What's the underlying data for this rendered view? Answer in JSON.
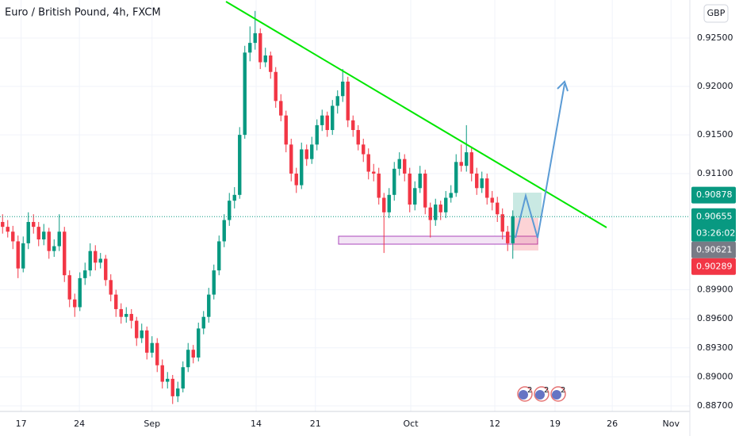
{
  "chart_data": {
    "type": "candlestick",
    "title": "Euro / British Pound, 4h, FXCM",
    "currency": "GBP",
    "up_color": "#089981",
    "down_color": "#f23645",
    "ylim": [
      0.88635,
      0.92893
    ],
    "yticks": [
      {
        "value": 0.925,
        "label": "0.92500"
      },
      {
        "value": 0.92,
        "label": "0.92000"
      },
      {
        "value": 0.915,
        "label": "0.91500"
      },
      {
        "value": 0.911,
        "label": "0.91100"
      },
      {
        "value": 0.899,
        "label": "0.89900"
      },
      {
        "value": 0.896,
        "label": "0.89600"
      },
      {
        "value": 0.893,
        "label": "0.89300"
      },
      {
        "value": 0.89,
        "label": "0.89000"
      },
      {
        "value": 0.887,
        "label": "0.88700"
      }
    ],
    "xlim": [
      -0.5,
      133.35
    ],
    "xticks": [
      {
        "value": 3.6,
        "label": "17"
      },
      {
        "value": 14.9,
        "label": "24"
      },
      {
        "value": 29,
        "label": "Sep"
      },
      {
        "value": 49.2,
        "label": "14"
      },
      {
        "value": 60.7,
        "label": "21"
      },
      {
        "value": 79.2,
        "label": "Oct"
      },
      {
        "value": 95.5,
        "label": "12"
      },
      {
        "value": 107.2,
        "label": "19"
      },
      {
        "value": 118.3,
        "label": "26"
      },
      {
        "value": 129.7,
        "label": "Nov"
      }
    ],
    "grid": true,
    "ohlc": [
      [
        0.906,
        0.9068,
        0.9048,
        0.9055
      ],
      [
        0.9055,
        0.9062,
        0.9044,
        0.905
      ],
      [
        0.905,
        0.9056,
        0.9032,
        0.904
      ],
      [
        0.904,
        0.9046,
        0.9002,
        0.9012
      ],
      [
        0.9012,
        0.9045,
        0.9008,
        0.9038
      ],
      [
        0.9038,
        0.907,
        0.9032,
        0.906
      ],
      [
        0.906,
        0.9068,
        0.9048,
        0.9055
      ],
      [
        0.9055,
        0.906,
        0.9035,
        0.9042
      ],
      [
        0.9042,
        0.9058,
        0.9036,
        0.905
      ],
      [
        0.905,
        0.9054,
        0.9022,
        0.903
      ],
      [
        0.903,
        0.9042,
        0.9024,
        0.9035
      ],
      [
        0.9035,
        0.9068,
        0.903,
        0.905
      ],
      [
        0.905,
        0.9055,
        0.8998,
        0.9005
      ],
      [
        0.9005,
        0.901,
        0.8972,
        0.898
      ],
      [
        0.898,
        0.8986,
        0.8962,
        0.8972
      ],
      [
        0.8972,
        0.9008,
        0.8968,
        0.9002
      ],
      [
        0.9002,
        0.9018,
        0.8995,
        0.901
      ],
      [
        0.901,
        0.9038,
        0.9004,
        0.903
      ],
      [
        0.903,
        0.9036,
        0.901,
        0.9018
      ],
      [
        0.9018,
        0.9028,
        0.9012,
        0.9022
      ],
      [
        0.9022,
        0.9026,
        0.8994,
        0.9
      ],
      [
        0.9,
        0.9006,
        0.8978,
        0.8985
      ],
      [
        0.8985,
        0.899,
        0.8962,
        0.897
      ],
      [
        0.897,
        0.8976,
        0.8955,
        0.8962
      ],
      [
        0.8962,
        0.8972,
        0.8956,
        0.8965
      ],
      [
        0.8965,
        0.897,
        0.895,
        0.8958
      ],
      [
        0.8958,
        0.8962,
        0.8932,
        0.894
      ],
      [
        0.894,
        0.8955,
        0.8935,
        0.8948
      ],
      [
        0.8948,
        0.8952,
        0.8918,
        0.8925
      ],
      [
        0.8925,
        0.8942,
        0.892,
        0.8935
      ],
      [
        0.8935,
        0.894,
        0.8905,
        0.8912
      ],
      [
        0.8912,
        0.8918,
        0.8888,
        0.8895
      ],
      [
        0.8895,
        0.8905,
        0.8888,
        0.8898
      ],
      [
        0.8898,
        0.8902,
        0.8872,
        0.888
      ],
      [
        0.888,
        0.8895,
        0.8874,
        0.8888
      ],
      [
        0.8888,
        0.8916,
        0.8884,
        0.891
      ],
      [
        0.891,
        0.8935,
        0.8905,
        0.8928
      ],
      [
        0.8928,
        0.8933,
        0.8914,
        0.892
      ],
      [
        0.892,
        0.8956,
        0.8916,
        0.895
      ],
      [
        0.895,
        0.8968,
        0.8944,
        0.8962
      ],
      [
        0.8962,
        0.8992,
        0.8956,
        0.8985
      ],
      [
        0.8985,
        0.9016,
        0.898,
        0.901
      ],
      [
        0.901,
        0.9046,
        0.9005,
        0.904
      ],
      [
        0.904,
        0.9068,
        0.9034,
        0.9062
      ],
      [
        0.9062,
        0.909,
        0.9056,
        0.9082
      ],
      [
        0.9082,
        0.9096,
        0.9074,
        0.9088
      ],
      [
        0.9088,
        0.9158,
        0.9084,
        0.915
      ],
      [
        0.915,
        0.9242,
        0.9146,
        0.9235
      ],
      [
        0.9235,
        0.9262,
        0.9226,
        0.9245
      ],
      [
        0.9245,
        0.9278,
        0.9238,
        0.9255
      ],
      [
        0.9255,
        0.926,
        0.9218,
        0.9225
      ],
      [
        0.9225,
        0.924,
        0.922,
        0.9232
      ],
      [
        0.9232,
        0.9236,
        0.9208,
        0.9215
      ],
      [
        0.9215,
        0.922,
        0.9178,
        0.9185
      ],
      [
        0.9185,
        0.9192,
        0.9164,
        0.917
      ],
      [
        0.917,
        0.9175,
        0.9132,
        0.914
      ],
      [
        0.914,
        0.9146,
        0.9102,
        0.911
      ],
      [
        0.911,
        0.9116,
        0.909,
        0.9098
      ],
      [
        0.9098,
        0.9142,
        0.9094,
        0.9135
      ],
      [
        0.9135,
        0.914,
        0.9118,
        0.9125
      ],
      [
        0.9125,
        0.9148,
        0.912,
        0.914
      ],
      [
        0.914,
        0.9166,
        0.9134,
        0.916
      ],
      [
        0.916,
        0.9176,
        0.9154,
        0.917
      ],
      [
        0.917,
        0.9174,
        0.9148,
        0.9155
      ],
      [
        0.9155,
        0.9186,
        0.915,
        0.918
      ],
      [
        0.918,
        0.9196,
        0.9172,
        0.919
      ],
      [
        0.919,
        0.9218,
        0.9184,
        0.9205
      ],
      [
        0.9205,
        0.921,
        0.9158,
        0.9165
      ],
      [
        0.9165,
        0.917,
        0.9148,
        0.9155
      ],
      [
        0.9155,
        0.916,
        0.9134,
        0.914
      ],
      [
        0.914,
        0.9146,
        0.9122,
        0.913
      ],
      [
        0.913,
        0.9136,
        0.9104,
        0.9112
      ],
      [
        0.9112,
        0.912,
        0.9102,
        0.911
      ],
      [
        0.911,
        0.9116,
        0.9078,
        0.9085
      ],
      [
        0.9085,
        0.909,
        0.9028,
        0.907
      ],
      [
        0.907,
        0.9095,
        0.9064,
        0.9088
      ],
      [
        0.9088,
        0.9122,
        0.9082,
        0.9115
      ],
      [
        0.9115,
        0.9132,
        0.9108,
        0.9125
      ],
      [
        0.9125,
        0.913,
        0.9102,
        0.911
      ],
      [
        0.911,
        0.9116,
        0.907,
        0.9078
      ],
      [
        0.9078,
        0.9102,
        0.9072,
        0.9095
      ],
      [
        0.9095,
        0.9118,
        0.909,
        0.911
      ],
      [
        0.911,
        0.9114,
        0.9068,
        0.9075
      ],
      [
        0.9075,
        0.908,
        0.9044,
        0.9062
      ],
      [
        0.9062,
        0.9084,
        0.9056,
        0.9078
      ],
      [
        0.9078,
        0.9082,
        0.9062,
        0.907
      ],
      [
        0.907,
        0.9092,
        0.9064,
        0.9085
      ],
      [
        0.9085,
        0.9098,
        0.908,
        0.909
      ],
      [
        0.909,
        0.913,
        0.9086,
        0.9122
      ],
      [
        0.9122,
        0.914,
        0.9112,
        0.9118
      ],
      [
        0.9118,
        0.916,
        0.9112,
        0.9132
      ],
      [
        0.9132,
        0.9138,
        0.9102,
        0.911
      ],
      [
        0.911,
        0.9116,
        0.9088,
        0.9095
      ],
      [
        0.9095,
        0.9112,
        0.909,
        0.9105
      ],
      [
        0.9105,
        0.911,
        0.9078,
        0.9085
      ],
      [
        0.9085,
        0.9092,
        0.9072,
        0.908
      ],
      [
        0.908,
        0.9086,
        0.906,
        0.9068
      ],
      [
        0.9068,
        0.9074,
        0.9042,
        0.905
      ],
      [
        0.905,
        0.9056,
        0.903,
        0.9038
      ],
      [
        0.9038,
        0.9072,
        0.9022,
        0.9066
      ]
    ],
    "current_price": 0.90655,
    "price_tags": [
      {
        "value": 0.90878,
        "color": "#089981"
      },
      {
        "value": 0.90655,
        "color": "#089981",
        "countdown": "03:26:02"
      },
      {
        "value": 0.90621,
        "color": "#787b86"
      },
      {
        "value": 0.90289,
        "color": "#f23645"
      }
    ],
    "event_badges": [
      "2",
      "2",
      "2"
    ]
  }
}
